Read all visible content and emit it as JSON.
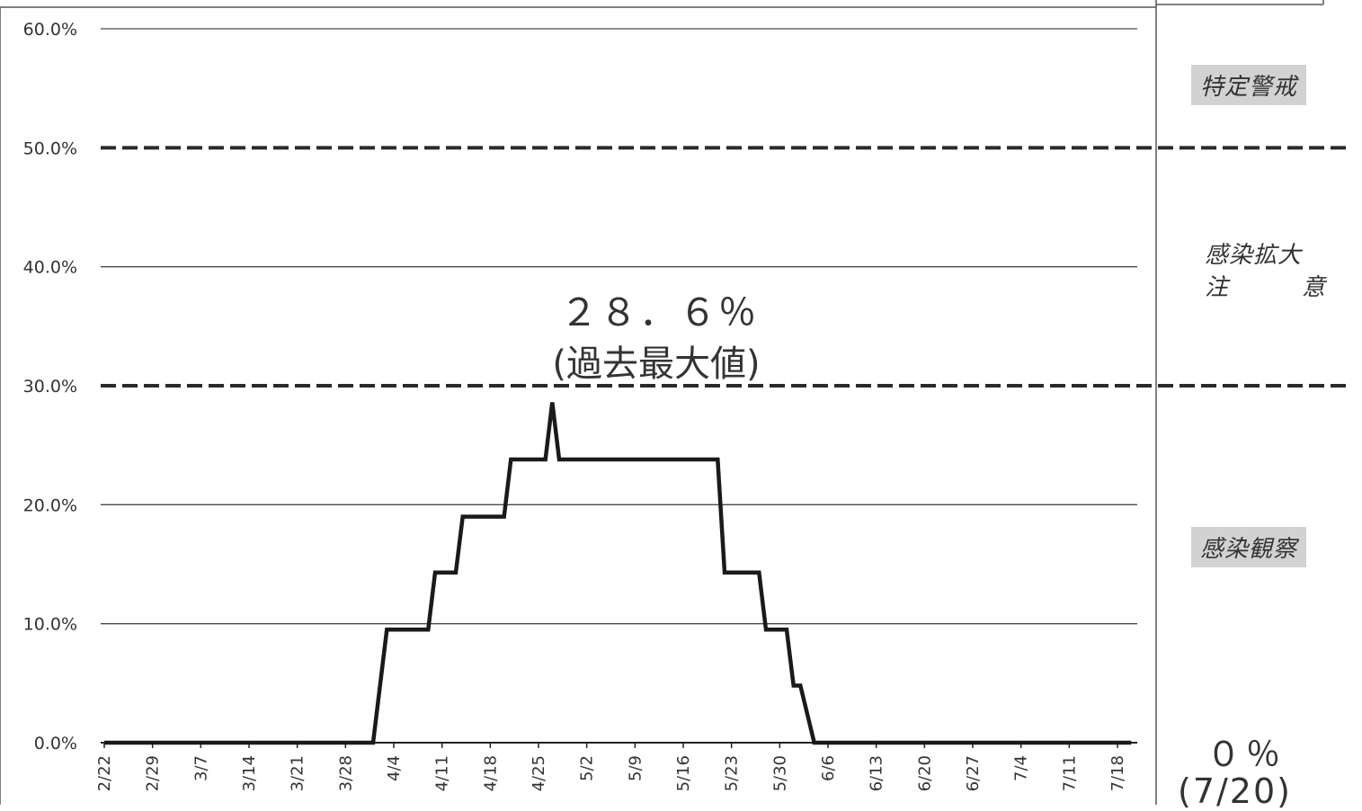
{
  "chart_data": {
    "type": "line",
    "ylim": [
      0,
      60
    ],
    "y_ticks": [
      "0.0%",
      "10.0%",
      "20.0%",
      "30.0%",
      "40.0%",
      "50.0%",
      "60.0%"
    ],
    "x_ticks": [
      "2/22",
      "2/29",
      "3/7",
      "3/14",
      "3/21",
      "3/28",
      "4/4",
      "4/11",
      "4/18",
      "4/25",
      "5/2",
      "5/9",
      "5/16",
      "5/23",
      "5/30",
      "6/6",
      "6/13",
      "6/20",
      "6/27",
      "7/4",
      "7/11",
      "7/18"
    ],
    "x_range": [
      "2/22",
      "7/20"
    ],
    "grid": true,
    "threshold_lines": [
      30,
      50
    ],
    "series": [
      {
        "points": [
          [
            "2/22",
            0
          ],
          [
            "4/1",
            0
          ],
          [
            "4/3",
            9.5
          ],
          [
            "4/9",
            9.5
          ],
          [
            "4/10",
            14.3
          ],
          [
            "4/13",
            14.3
          ],
          [
            "4/14",
            19.0
          ],
          [
            "4/20",
            19.0
          ],
          [
            "4/21",
            23.8
          ],
          [
            "4/26",
            23.8
          ],
          [
            "4/27",
            28.6
          ],
          [
            "4/28",
            23.8
          ],
          [
            "5/21",
            23.8
          ],
          [
            "5/22",
            14.3
          ],
          [
            "5/27",
            14.3
          ],
          [
            "5/28",
            9.5
          ],
          [
            "5/31",
            9.5
          ],
          [
            "6/1",
            4.8
          ],
          [
            "6/2",
            4.8
          ],
          [
            "6/4",
            0
          ],
          [
            "7/20",
            0
          ]
        ]
      }
    ],
    "annotation": {
      "value": "２８．６％",
      "note": "(過去最大値)"
    }
  },
  "zones": {
    "special": "特定警戒",
    "caution_line1": "感染拡大",
    "caution_line2a": "注",
    "caution_line2b": "意",
    "observe": "感染観察"
  },
  "current": {
    "value": "０％",
    "date": "(7/20)"
  },
  "colors": {
    "line": "#1a1a1a",
    "grid": "#4a4a4a",
    "zone_bg": "#d2d2d2"
  }
}
